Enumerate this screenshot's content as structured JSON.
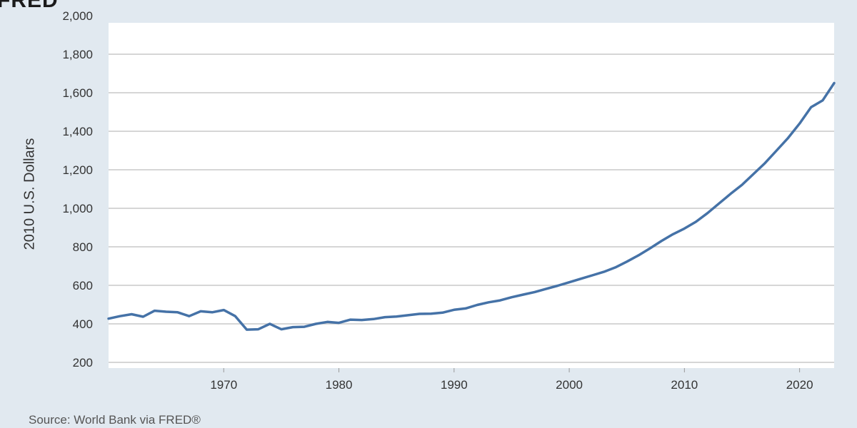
{
  "header": {
    "logo": "FRED"
  },
  "footer": {
    "source": "Source: World Bank via FRED®"
  },
  "colors": {
    "background": "#e1e9f0",
    "plot": "#ffffff",
    "grid": "#c9c9c9",
    "line": "#4572a7"
  },
  "chart_data": {
    "type": "line",
    "title": "",
    "xlabel": "",
    "ylabel": "2010 U.S. Dollars",
    "xlim": [
      1960,
      2023
    ],
    "ylim": [
      200,
      2000
    ],
    "yticks": [
      200,
      400,
      600,
      800,
      1000,
      1200,
      1400,
      1600,
      1800,
      2000
    ],
    "ytick_labels": [
      "200",
      "400",
      "600",
      "800",
      "1,000",
      "1,200",
      "1,400",
      "1,600",
      "1,800",
      "2,000"
    ],
    "xticks": [
      1970,
      1980,
      1990,
      2000,
      2010,
      2020
    ],
    "xtick_labels": [
      "1970",
      "1980",
      "1990",
      "2000",
      "2010",
      "2020"
    ],
    "grid": true,
    "series": [
      {
        "x": [
          1960,
          1961,
          1962,
          1963,
          1964,
          1965,
          1966,
          1967,
          1968,
          1969,
          1970,
          1971,
          1972,
          1973,
          1974,
          1975,
          1976,
          1977,
          1978,
          1979,
          1980,
          1981,
          1982,
          1983,
          1984,
          1985,
          1986,
          1987,
          1988,
          1989,
          1990,
          1991,
          1992,
          1993,
          1994,
          1995,
          1996,
          1997,
          1998,
          1999,
          2000,
          2001,
          2002,
          2003,
          2004,
          2005,
          2006,
          2007,
          2008,
          2009,
          2010,
          2011,
          2012,
          2013,
          2014,
          2015,
          2016,
          2017,
          2018,
          2019,
          2020,
          2021,
          2022,
          2023
        ],
        "values": [
          427,
          440,
          450,
          437,
          468,
          463,
          460,
          440,
          465,
          460,
          472,
          440,
          370,
          372,
          400,
          372,
          383,
          385,
          400,
          410,
          405,
          422,
          420,
          425,
          435,
          438,
          445,
          452,
          453,
          458,
          473,
          480,
          498,
          512,
          522,
          538,
          552,
          565,
          582,
          598,
          616,
          634,
          652,
          670,
          693,
          723,
          755,
          792,
          830,
          865,
          895,
          930,
          975,
          1025,
          1075,
          1122,
          1178,
          1235,
          1300,
          1365,
          1440,
          1525,
          1560,
          1650
        ]
      }
    ]
  }
}
